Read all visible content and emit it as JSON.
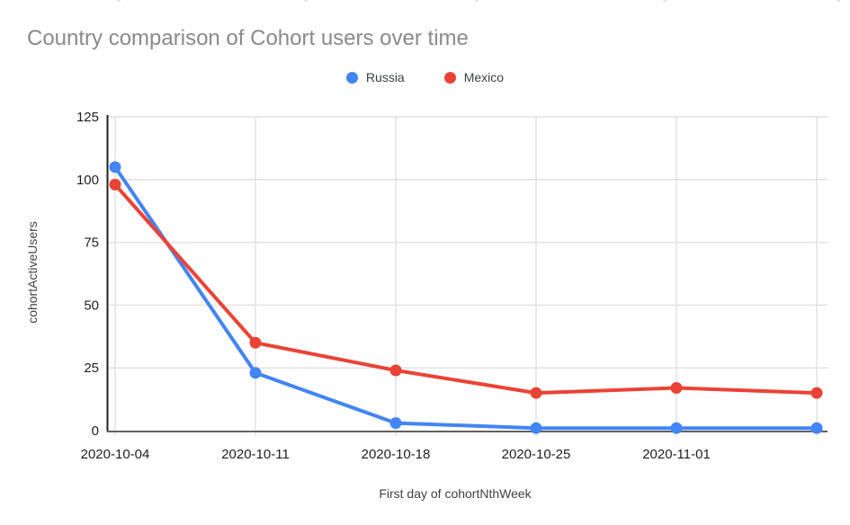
{
  "page": {
    "title": "Country comparison of Cohort users over time"
  },
  "chart_data": {
    "type": "line",
    "title": "Country comparison of Cohort users over time",
    "categories": [
      "2020-10-04",
      "2020-10-11",
      "2020-10-18",
      "2020-10-25",
      "2020-11-01",
      ""
    ],
    "series": [
      {
        "name": "Russia",
        "color": "#4285F4",
        "values": [
          105,
          23,
          3,
          1,
          1,
          1
        ]
      },
      {
        "name": "Mexico",
        "color": "#EA4335",
        "values": [
          98,
          35,
          24,
          15,
          17,
          15
        ]
      }
    ],
    "xlabel": "First day of cohortNthWeek",
    "ylabel": "cohortActiveUsers",
    "ylim": [
      0,
      125
    ],
    "yticks": [
      0,
      25,
      50,
      75,
      100,
      125
    ],
    "grid": true,
    "legend_position": "top",
    "marker": "circle"
  },
  "colors": {
    "title_text": "#8a8a8a",
    "tick_text": "#1f1f1f",
    "axis_title_text": "#424242",
    "gridline": "#e2e2e2",
    "y_axis_line": "#212121",
    "x_axis_line": "#616161",
    "background": "#ffffff"
  }
}
